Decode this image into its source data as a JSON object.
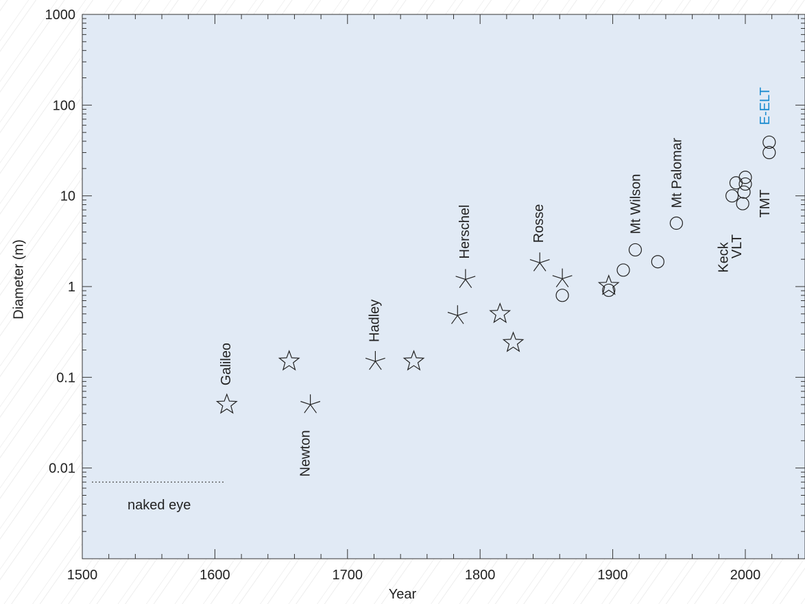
{
  "chart_data": {
    "type": "scatter",
    "xlabel": "Year",
    "ylabel": "Diameter (m)",
    "xlim": [
      1500,
      2045
    ],
    "ylim": [
      0.001,
      1000
    ],
    "yscale": "log",
    "grid": false,
    "xticks": [
      1500,
      1600,
      1700,
      1800,
      1900,
      2000
    ],
    "xtick_labels": [
      "1500",
      "1600",
      "1700",
      "1800",
      "1900",
      "2000"
    ],
    "yticks": [
      0.01,
      0.1,
      1,
      10,
      100,
      1000
    ],
    "ytick_labels": [
      "0.01",
      "0.1",
      "1",
      "10",
      "100",
      "1000"
    ],
    "background_color": "#e1eaf5",
    "highlight_color": "#1a8bd0",
    "marker_types": {
      "refractor": "star-icon",
      "metal-mirror reflector": "asterisk-icon",
      "glass-mirror reflector": "circle-icon"
    },
    "series": [
      {
        "marker": "star",
        "points": [
          [
            1609,
            0.05
          ],
          [
            1656,
            0.15
          ],
          [
            1750,
            0.15
          ],
          [
            1815,
            0.5
          ],
          [
            1825,
            0.24
          ],
          [
            1897,
            1.02
          ]
        ]
      },
      {
        "marker": "asterisk",
        "points": [
          [
            1672,
            0.05
          ],
          [
            1721,
            0.15
          ],
          [
            1783,
            0.48
          ],
          [
            1789,
            1.2
          ],
          [
            1845,
            1.83
          ],
          [
            1862,
            1.22
          ]
        ]
      },
      {
        "marker": "circle",
        "points": [
          [
            1862,
            0.8
          ],
          [
            1897,
            0.91
          ],
          [
            1908,
            1.52
          ],
          [
            1917,
            2.54
          ],
          [
            1934,
            1.88
          ],
          [
            1948,
            5.0
          ],
          [
            1990,
            10.0
          ],
          [
            1993,
            13.9
          ],
          [
            1998,
            8.2
          ],
          [
            1999,
            11.0
          ],
          [
            2000,
            13.5
          ],
          [
            2000,
            16.0
          ],
          [
            2018,
            30.0
          ],
          [
            2018,
            39.0
          ]
        ]
      }
    ],
    "annotations": [
      {
        "text": "Galileo",
        "x": 1609,
        "y": 0.05,
        "rot": true
      },
      {
        "text": "Newton",
        "x": 1672,
        "y": 0.05,
        "rot": true
      },
      {
        "text": "Hadley",
        "x": 1721,
        "y": 0.15,
        "rot": true
      },
      {
        "text": "Herschel",
        "x": 1789,
        "y": 1.2,
        "rot": true
      },
      {
        "text": "Rosse",
        "x": 1845,
        "y": 1.83,
        "rot": true
      },
      {
        "text": "Mt Wilson",
        "x": 1917,
        "y": 2.54,
        "rot": true
      },
      {
        "text": "Mt Palomar",
        "x": 1948,
        "y": 5.0,
        "rot": true
      },
      {
        "text": "Keck",
        "x": 1990,
        "y": 10.0,
        "rot": true
      },
      {
        "text": "VLT",
        "x": 1998,
        "y": 8.2,
        "rot": true
      },
      {
        "text": "TMT",
        "x": 2018,
        "y": 30.0,
        "rot": true
      },
      {
        "text": "E-ELT",
        "x": 2018,
        "y": 39.0,
        "rot": true,
        "highlight": true
      },
      {
        "text": "naked eye",
        "x": 1558,
        "y": 0.0035,
        "rot": false
      }
    ],
    "reference_line": {
      "label": "naked eye",
      "y": 0.007,
      "x": [
        1500,
        1608
      ],
      "style": "dotted"
    }
  }
}
